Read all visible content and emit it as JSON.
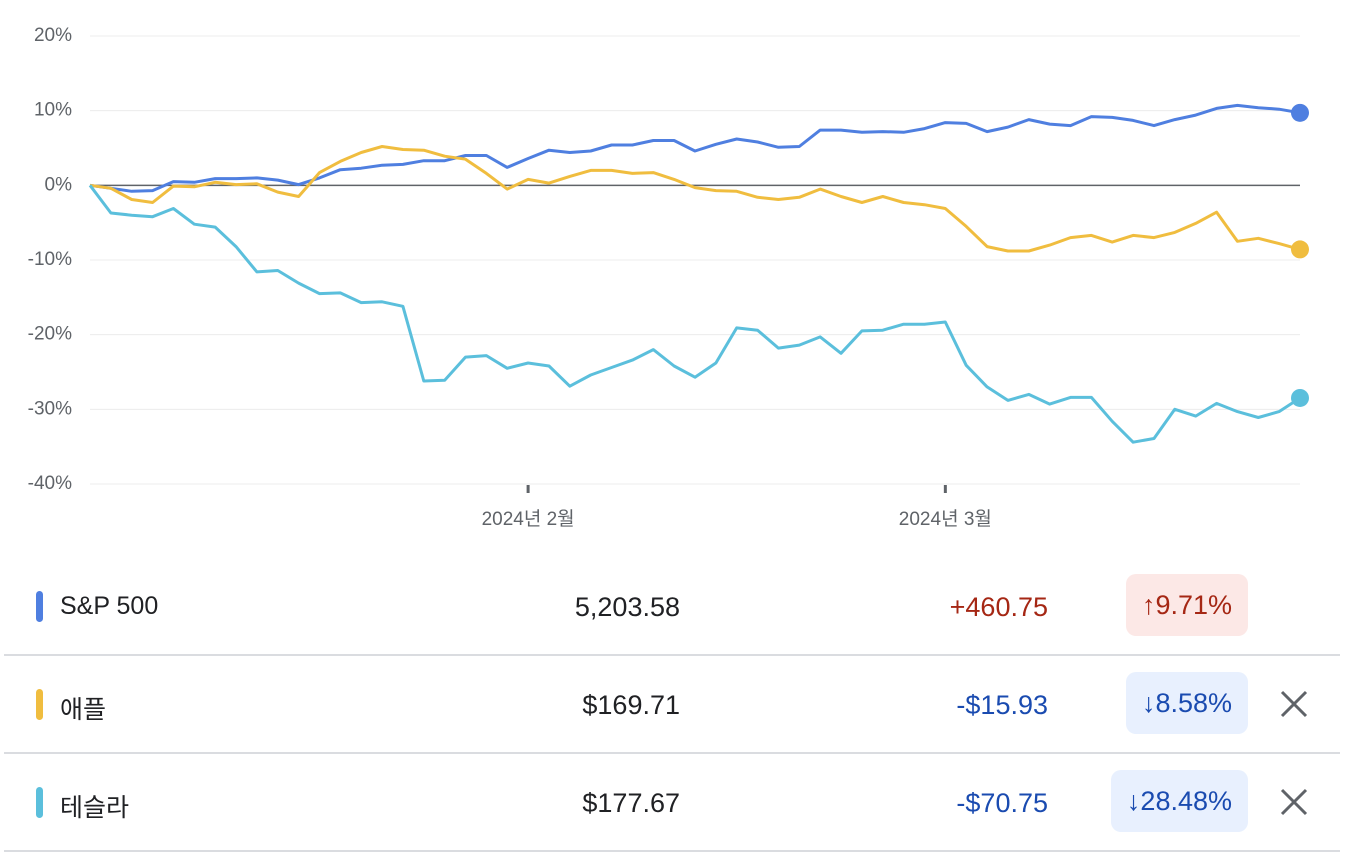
{
  "chart_data": {
    "type": "line",
    "categories": [
      null,
      null,
      null,
      null,
      null,
      null,
      null,
      null,
      null,
      null,
      null,
      null,
      null,
      null,
      null,
      null,
      null,
      null,
      null,
      null,
      null,
      "2024년 2월",
      null,
      null,
      null,
      null,
      null,
      null,
      null,
      null,
      null,
      null,
      null,
      null,
      null,
      null,
      null,
      null,
      null,
      null,
      null,
      "2024년 3월",
      null,
      null,
      null,
      null,
      null,
      null,
      null,
      null,
      null,
      null,
      null,
      null,
      null,
      null,
      null,
      null,
      null
    ],
    "ylim": [
      -40,
      20
    ],
    "yticks": [
      {
        "value": -40,
        "label": "-40%"
      },
      {
        "value": -30,
        "label": "-30%"
      },
      {
        "value": -20,
        "label": "-20%"
      },
      {
        "value": -10,
        "label": "-10%"
      },
      {
        "value": 0,
        "label": "0%"
      },
      {
        "value": 10,
        "label": "10%"
      },
      {
        "value": 20,
        "label": "20%"
      }
    ],
    "grid": true,
    "series": [
      {
        "name": "S&P 500",
        "color": "#4f7fe0",
        "values": [
          0,
          -0.4,
          -0.8,
          -0.7,
          0.5,
          0.4,
          0.9,
          0.9,
          1.0,
          0.7,
          0.1,
          1.0,
          2.1,
          2.3,
          2.7,
          2.8,
          3.3,
          3.3,
          4.0,
          4.0,
          2.4,
          3.6,
          4.7,
          4.4,
          4.6,
          5.4,
          5.4,
          6.0,
          6.0,
          4.6,
          5.5,
          6.2,
          5.8,
          5.1,
          5.2,
          7.4,
          7.4,
          7.1,
          7.2,
          7.1,
          7.6,
          8.4,
          8.3,
          7.2,
          7.8,
          8.8,
          8.2,
          8.0,
          9.2,
          9.1,
          8.7,
          8.0,
          8.8,
          9.4,
          10.3,
          10.7,
          10.4,
          10.2,
          9.71
        ]
      },
      {
        "name": "애플",
        "color": "#f0bd3f",
        "values": [
          0,
          -0.4,
          -1.9,
          -2.3,
          -0.1,
          -0.2,
          0.4,
          0.1,
          0.2,
          -0.9,
          -1.5,
          1.7,
          3.2,
          4.4,
          5.2,
          4.8,
          4.7,
          3.9,
          3.5,
          1.6,
          -0.5,
          0.8,
          0.3,
          1.2,
          2.0,
          2.0,
          1.6,
          1.7,
          0.8,
          -0.3,
          -0.7,
          -0.8,
          -1.6,
          -1.9,
          -1.6,
          -0.5,
          -1.5,
          -2.3,
          -1.5,
          -2.3,
          -2.6,
          -3.1,
          -5.5,
          -8.2,
          -8.8,
          -8.8,
          -8.0,
          -7.0,
          -6.7,
          -7.6,
          -6.7,
          -7.0,
          -6.3,
          -5.1,
          -3.6,
          -7.5,
          -7.1,
          -7.8,
          -8.58
        ]
      },
      {
        "name": "테슬라",
        "color": "#5bbfdc",
        "values": [
          0,
          -3.7,
          -4.0,
          -4.2,
          -3.1,
          -5.2,
          -5.6,
          -8.2,
          -11.6,
          -11.4,
          -13.1,
          -14.5,
          -14.4,
          -15.7,
          -15.6,
          -16.2,
          -26.2,
          -26.1,
          -23.0,
          -22.8,
          -24.5,
          -23.8,
          -24.2,
          -26.9,
          -25.4,
          -24.4,
          -23.4,
          -22.0,
          -24.2,
          -25.7,
          -23.8,
          -19.1,
          -19.4,
          -21.8,
          -21.4,
          -20.3,
          -22.5,
          -19.5,
          -19.4,
          -18.6,
          -18.6,
          -18.3,
          -24.1,
          -27.0,
          -28.8,
          -28.0,
          -29.3,
          -28.4,
          -28.4,
          -31.6,
          -34.4,
          -33.9,
          -30.0,
          -30.9,
          -29.2,
          -30.3,
          -31.1,
          -30.3,
          -28.48
        ]
      }
    ]
  },
  "rows": [
    {
      "price": "5,203.58",
      "change": "+460.75",
      "percent": "↑9.71%",
      "change_color": "#a52714",
      "badge_color": "#fce8e6"
    },
    {
      "price": "$169.71",
      "change": "-$15.93",
      "percent": "↓8.58%",
      "change_color": "#1a4bb0",
      "badge_color": "#e8f0fe"
    },
    {
      "price": "$177.67",
      "change": "-$70.75",
      "percent": "↓28.48%",
      "change_color": "#1a4bb0",
      "badge_color": "#e8f0fe"
    }
  ]
}
